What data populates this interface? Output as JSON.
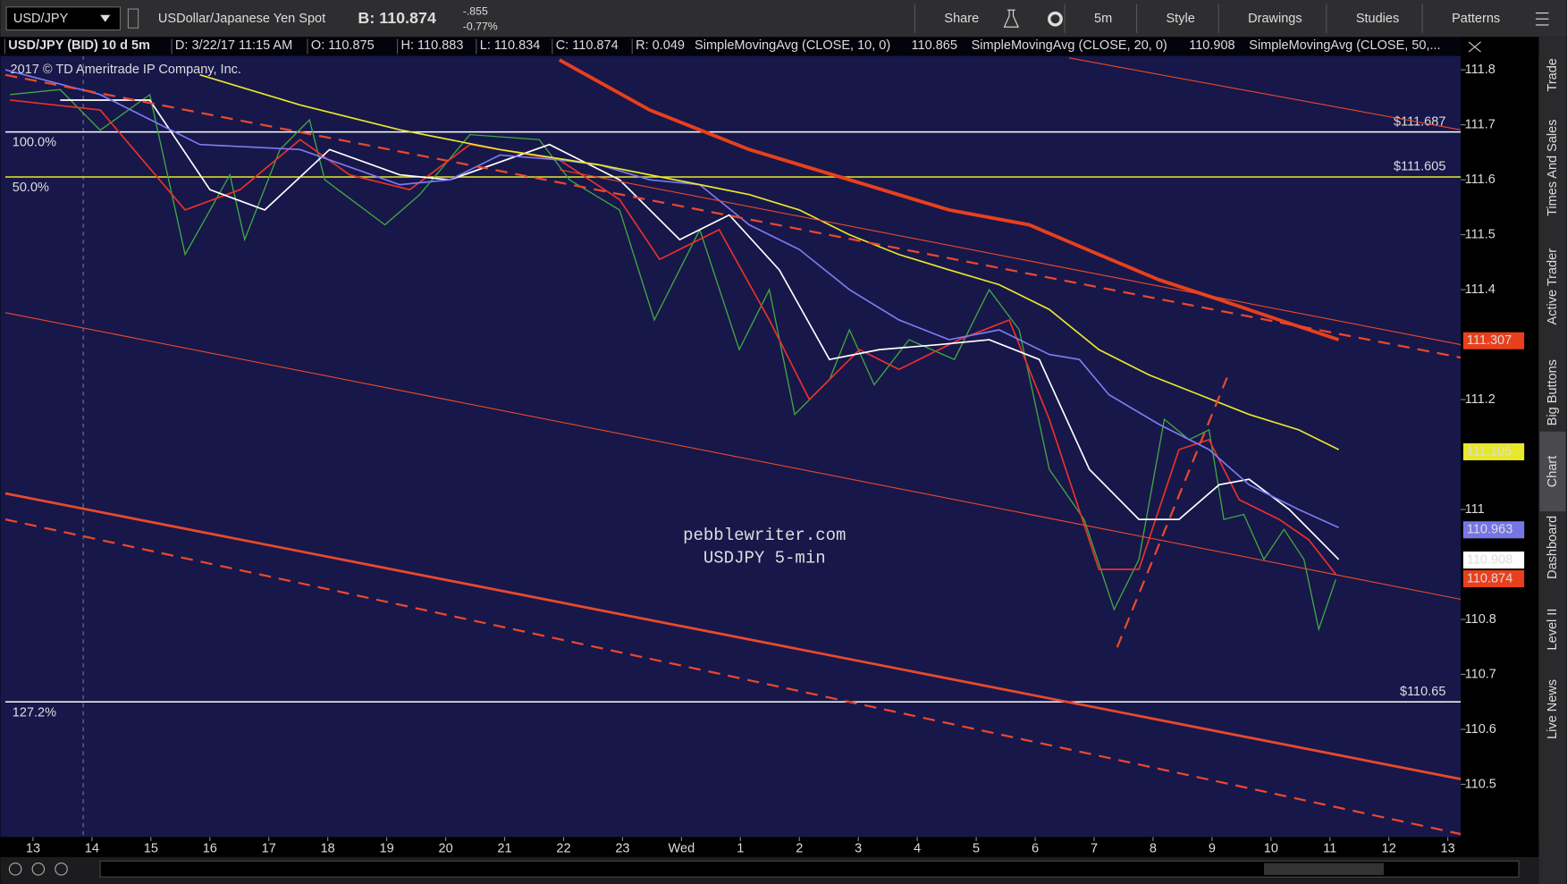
{
  "toolbar": {
    "symbol": "USD/JPY",
    "description": "USDollar/Japanese Yen Spot",
    "bid": "B: 110.874",
    "change": "-.855",
    "change_pct": "-0.77%",
    "buttons": [
      "Share",
      "5m",
      "Style",
      "Drawings",
      "Studies",
      "Patterns"
    ]
  },
  "info_bar": {
    "title": "USD/JPY (BID) 10 d 5m",
    "date": "D: 3/22/17 11:15 AM",
    "open": "O: 110.875",
    "high": "H: 110.883",
    "low": "L: 110.834",
    "close": "C: 110.874",
    "range": "R: 0.049"
  },
  "side_tabs": [
    "Trade",
    "Times And Sales",
    "Active Trader",
    "Big Buttons",
    "Chart",
    "Dashboard",
    "Level II",
    "Live News"
  ],
  "chart_data": {
    "type": "line",
    "watermark": "2017 © TD Ameritrade IP Company, Inc.",
    "annotations": [
      "pebblewriter.com",
      "USDJPY 5-min"
    ],
    "xlim": [
      -0.47,
      24.22
    ],
    "xticks": [
      {
        "value": 0,
        "label": "13"
      },
      {
        "value": 1,
        "label": "14"
      },
      {
        "value": 2,
        "label": "15"
      },
      {
        "value": 3,
        "label": "16"
      },
      {
        "value": 4,
        "label": "17"
      },
      {
        "value": 5,
        "label": "18"
      },
      {
        "value": 6,
        "label": "19"
      },
      {
        "value": 7,
        "label": "20"
      },
      {
        "value": 8,
        "label": "21"
      },
      {
        "value": 9,
        "label": "22"
      },
      {
        "value": 10,
        "label": "23"
      },
      {
        "value": 11,
        "label": "Wed"
      },
      {
        "value": 12,
        "label": "1"
      },
      {
        "value": 13,
        "label": "2"
      },
      {
        "value": 14,
        "label": "3"
      },
      {
        "value": 15,
        "label": "4"
      },
      {
        "value": 16,
        "label": "5"
      },
      {
        "value": 17,
        "label": "6"
      },
      {
        "value": 18,
        "label": "7"
      },
      {
        "value": 19,
        "label": "8"
      },
      {
        "value": 20,
        "label": "9"
      },
      {
        "value": 21,
        "label": "10"
      },
      {
        "value": 22,
        "label": "11"
      },
      {
        "value": 23,
        "label": "12"
      },
      {
        "value": 24,
        "label": "13"
      }
    ],
    "ylim": [
      110.404,
      111.858
    ],
    "yticks": [
      111.8,
      111.7,
      111.6,
      111.5,
      111.4,
      111.2,
      111,
      110.8,
      110.7,
      110.6,
      110.5
    ],
    "fib_levels": [
      {
        "level": "100.0%",
        "price": {
          "value": 111.687,
          "label": "$111.687"
        },
        "color": "#ffffff"
      },
      {
        "level": "50.0%",
        "price": {
          "value": 111.605,
          "label": "$111.605"
        },
        "color": "#e8e82a"
      },
      {
        "level": "127.2%",
        "price": {
          "value": 110.65,
          "label": "$110.65"
        },
        "color": "#ffffff"
      }
    ],
    "price_markers": [
      {
        "value": 111.307,
        "color": "#e8401c"
      },
      {
        "value": 111.105,
        "color": "#e8e82a"
      },
      {
        "value": 110.963,
        "color": "#7b7bf0"
      },
      {
        "value": 110.908,
        "color": "#ffffff"
      },
      {
        "value": 110.874,
        "color": "#e8401c"
      }
    ],
    "series": [
      {
        "color": "#3fa83f",
        "x": [
          -0.39,
          0.46,
          1.14,
          1.98,
          2.58,
          3.34,
          3.59,
          4.19,
          4.69,
          4.95,
          5.97,
          6.56,
          7.41,
          8.59,
          9.1,
          9.95,
          10.54,
          11.31,
          11.98,
          12.49,
          12.92,
          13.51,
          13.85,
          14.27,
          14.86,
          15.63,
          16.22,
          16.73,
          17.24,
          17.83,
          18.34,
          18.76,
          19.19,
          19.61,
          19.95,
          20.2,
          20.54,
          20.88,
          21.22,
          21.56,
          21.81,
          22.1
        ],
        "values": [
          111.755,
          111.764,
          111.69,
          111.755,
          111.464,
          111.609,
          111.491,
          111.655,
          111.709,
          111.6,
          111.518,
          111.573,
          111.682,
          111.673,
          111.6,
          111.545,
          111.345,
          111.509,
          111.291,
          111.4,
          111.173,
          111.236,
          111.327,
          111.227,
          111.309,
          111.273,
          111.4,
          111.327,
          111.073,
          110.982,
          110.818,
          110.909,
          111.164,
          111.127,
          111.145,
          110.982,
          110.991,
          110.909,
          110.964,
          110.909,
          110.782,
          110.873
        ]
      },
      {
        "name": "SimpleMovingAvg (CLOSE, 10, 0)",
        "last_value": 110.865,
        "color": "#e8312a",
        "x": [
          -0.39,
          1.14,
          2.58,
          3.51,
          4.53,
          5.37,
          6.39,
          7.41,
          8.93,
          9.95,
          10.63,
          11.64,
          12.49,
          13.17,
          14.02,
          14.69,
          15.71,
          16.56,
          17.24,
          18.08,
          18.76,
          19.44,
          19.95,
          20.46,
          21.14,
          21.64,
          22.1
        ],
        "values": [
          111.745,
          111.727,
          111.545,
          111.582,
          111.673,
          111.609,
          111.582,
          111.664,
          111.636,
          111.564,
          111.455,
          111.509,
          111.345,
          111.2,
          111.291,
          111.255,
          111.309,
          111.345,
          111.164,
          110.891,
          110.891,
          111.109,
          111.127,
          111.018,
          110.982,
          110.945,
          110.882
        ]
      },
      {
        "name": "SimpleMovingAvg (CLOSE, 20, 0)",
        "last_value": 110.908,
        "color": "#ffffff",
        "x": [
          0.46,
          1.98,
          3.0,
          3.93,
          5.03,
          6.22,
          7.07,
          8.76,
          9.95,
          10.97,
          11.81,
          12.66,
          13.51,
          14.36,
          15.37,
          16.22,
          17.07,
          17.92,
          18.76,
          19.44,
          20.12,
          20.63,
          21.31,
          22.15
        ],
        "values": [
          111.745,
          111.745,
          111.582,
          111.545,
          111.655,
          111.609,
          111.6,
          111.664,
          111.6,
          111.491,
          111.536,
          111.436,
          111.273,
          111.291,
          111.3,
          111.309,
          111.273,
          111.073,
          110.982,
          110.982,
          111.045,
          111.055,
          111.0,
          110.909
        ]
      },
      {
        "name": "SimpleMovingAvg (CLOSE, 50,...",
        "color": "#7b7bf0",
        "x": [
          -0.47,
          1.14,
          2.83,
          4.53,
          6.22,
          7.07,
          7.92,
          8.93,
          9.61,
          10.46,
          11.31,
          12.15,
          13.0,
          13.85,
          14.69,
          15.54,
          16.39,
          17.24,
          17.75,
          18.25,
          19.1,
          19.95,
          20.63,
          21.47,
          22.15
        ],
        "values": [
          111.8,
          111.755,
          111.664,
          111.655,
          111.591,
          111.6,
          111.645,
          111.636,
          111.627,
          111.6,
          111.591,
          111.518,
          111.473,
          111.4,
          111.345,
          111.309,
          111.327,
          111.282,
          111.273,
          111.209,
          111.155,
          111.109,
          111.045,
          111.0,
          110.967
        ]
      },
      {
        "color": "#e8e82a",
        "x": [
          2.83,
          4.53,
          6.22,
          7.92,
          9.61,
          11.31,
          12.15,
          13.0,
          13.85,
          14.69,
          15.54,
          16.39,
          17.24,
          18.08,
          18.93,
          19.78,
          20.63,
          21.47,
          22.15
        ],
        "values": [
          111.791,
          111.736,
          111.691,
          111.655,
          111.627,
          111.591,
          111.573,
          111.545,
          111.5,
          111.464,
          111.436,
          111.409,
          111.364,
          111.291,
          111.245,
          111.209,
          111.173,
          111.145,
          111.109
        ]
      },
      {
        "color": "#e8401c",
        "x": [
          8.93,
          10.46,
          12.15,
          13.85,
          15.54,
          16.9,
          18.08,
          19.1,
          20.12,
          21.14,
          22.15
        ],
        "values": [
          111.818,
          111.727,
          111.655,
          111.6,
          111.545,
          111.518,
          111.464,
          111.418,
          111.382,
          111.345,
          111.309
        ]
      }
    ]
  }
}
